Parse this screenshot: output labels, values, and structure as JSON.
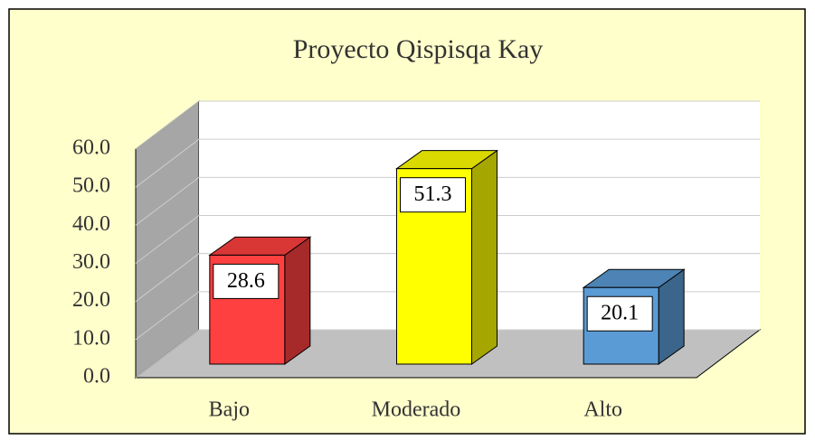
{
  "chart_data": {
    "type": "bar3d",
    "title": "Proyecto Qispisqa Kay",
    "categories": [
      "Bajo",
      "Moderado",
      "Alto"
    ],
    "values": [
      28.6,
      51.3,
      20.1
    ],
    "colors": [
      "#ff4040",
      "#ffff00",
      "#5b9bd5"
    ],
    "ylim": [
      0,
      60
    ],
    "yticks": [
      {
        "value": 0,
        "label": "0.0"
      },
      {
        "value": 10,
        "label": "10.0"
      },
      {
        "value": 20,
        "label": "20.0"
      },
      {
        "value": 30,
        "label": "30.0"
      },
      {
        "value": 40,
        "label": "40.0"
      },
      {
        "value": 50,
        "label": "50.0"
      },
      {
        "value": 60,
        "label": "60.0"
      }
    ],
    "grid": true
  }
}
